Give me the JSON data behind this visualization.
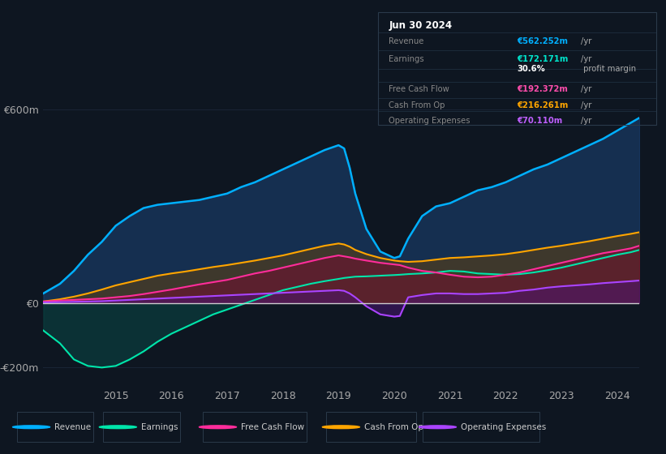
{
  "bg_color": "#0e1621",
  "plot_bg_color": "#0e1621",
  "grid_color": "#1a2535",
  "zero_line_color": "#cccccc",
  "title_box": {
    "date": "Jun 30 2024",
    "rows": [
      {
        "label": "Revenue",
        "value": "€562.252m",
        "unit": "/yr",
        "value_color": "#00b0ff"
      },
      {
        "label": "Earnings",
        "value": "€172.171m",
        "unit": "/yr",
        "value_color": "#00e5cc"
      },
      {
        "label": "",
        "value": "30.6%",
        "unit": " profit margin",
        "value_color": "#ffffff"
      },
      {
        "label": "Free Cash Flow",
        "value": "€192.372m",
        "unit": "/yr",
        "value_color": "#ff4dac"
      },
      {
        "label": "Cash From Op",
        "value": "€216.261m",
        "unit": "/yr",
        "value_color": "#ffa500"
      },
      {
        "label": "Operating Expenses",
        "value": "€70.110m",
        "unit": "/yr",
        "value_color": "#bf5fff"
      }
    ]
  },
  "ylim": [
    -250,
    680
  ],
  "yticks": [
    -200,
    0,
    600
  ],
  "ytick_labels": [
    "-€200m",
    "€0",
    "€600m"
  ],
  "years": [
    2013.7,
    2014.0,
    2014.25,
    2014.5,
    2014.75,
    2015.0,
    2015.25,
    2015.5,
    2015.75,
    2016.0,
    2016.25,
    2016.5,
    2016.75,
    2017.0,
    2017.25,
    2017.5,
    2017.75,
    2018.0,
    2018.25,
    2018.5,
    2018.75,
    2019.0,
    2019.1,
    2019.2,
    2019.3,
    2019.5,
    2019.75,
    2020.0,
    2020.1,
    2020.25,
    2020.5,
    2020.75,
    2021.0,
    2021.25,
    2021.5,
    2021.75,
    2022.0,
    2022.25,
    2022.5,
    2022.75,
    2023.0,
    2023.25,
    2023.5,
    2023.75,
    2024.0,
    2024.25,
    2024.4
  ],
  "revenue": [
    30,
    60,
    100,
    150,
    190,
    240,
    270,
    295,
    305,
    310,
    315,
    320,
    330,
    340,
    360,
    375,
    395,
    415,
    435,
    455,
    475,
    490,
    480,
    420,
    340,
    230,
    160,
    140,
    145,
    200,
    270,
    300,
    310,
    330,
    350,
    360,
    375,
    395,
    415,
    430,
    450,
    470,
    490,
    510,
    535,
    560,
    575
  ],
  "earnings": [
    -85,
    -125,
    -175,
    -195,
    -200,
    -195,
    -175,
    -150,
    -120,
    -95,
    -75,
    -55,
    -35,
    -20,
    -5,
    10,
    25,
    40,
    50,
    60,
    68,
    75,
    78,
    80,
    82,
    83,
    85,
    87,
    88,
    90,
    92,
    95,
    100,
    98,
    92,
    90,
    88,
    90,
    95,
    102,
    110,
    120,
    130,
    140,
    150,
    158,
    165
  ],
  "fcf": [
    5,
    8,
    10,
    12,
    14,
    18,
    22,
    28,
    35,
    42,
    50,
    58,
    65,
    72,
    82,
    92,
    100,
    110,
    120,
    130,
    140,
    148,
    145,
    142,
    138,
    132,
    125,
    120,
    118,
    110,
    100,
    95,
    88,
    82,
    80,
    82,
    88,
    95,
    105,
    115,
    125,
    135,
    145,
    155,
    162,
    170,
    178
  ],
  "cashfromop": [
    5,
    12,
    20,
    30,
    42,
    55,
    65,
    75,
    85,
    92,
    98,
    105,
    112,
    118,
    125,
    132,
    140,
    148,
    158,
    168,
    178,
    185,
    182,
    175,
    165,
    152,
    140,
    132,
    130,
    128,
    130,
    135,
    140,
    142,
    145,
    148,
    152,
    158,
    165,
    172,
    178,
    185,
    192,
    200,
    208,
    215,
    220
  ],
  "opex": [
    2,
    3,
    4,
    5,
    6,
    8,
    10,
    12,
    14,
    16,
    18,
    20,
    22,
    24,
    26,
    28,
    30,
    32,
    34,
    36,
    38,
    40,
    38,
    30,
    18,
    -10,
    -35,
    -42,
    -40,
    18,
    25,
    30,
    30,
    28,
    28,
    30,
    32,
    38,
    42,
    48,
    52,
    55,
    58,
    62,
    65,
    68,
    70
  ],
  "revenue_color": "#00b0ff",
  "earnings_color": "#00e5aa",
  "fcf_color": "#ff2d9b",
  "cashfromop_color": "#ffa500",
  "opex_color": "#aa44ff",
  "revenue_fill": "#1a4070",
  "earnings_fill": "#0a4040",
  "fcf_fill": "#701030",
  "cashfromop_fill": "#604010",
  "opex_fill": "#4a1570",
  "legend_labels": [
    "Revenue",
    "Earnings",
    "Free Cash Flow",
    "Cash From Op",
    "Operating Expenses"
  ],
  "legend_colors": [
    "#00b0ff",
    "#00e5aa",
    "#ff2d9b",
    "#ffa500",
    "#aa44ff"
  ]
}
